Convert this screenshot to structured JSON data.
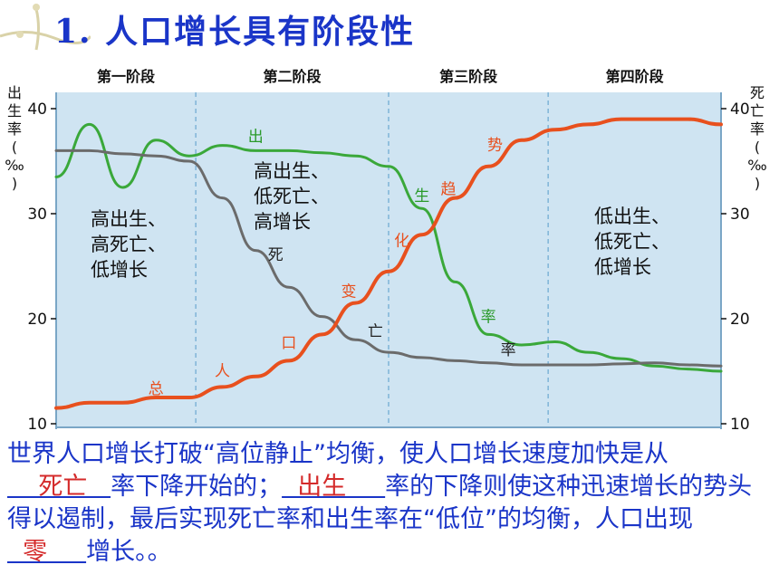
{
  "title": "1.   人口增长具有阶段性",
  "chart_data": {
    "type": "line",
    "x": [
      0,
      5,
      10,
      15,
      20,
      25,
      30,
      35,
      40,
      45,
      50,
      55,
      60,
      65,
      70,
      75,
      80,
      85,
      90,
      95,
      100
    ],
    "stages": [
      "第一阶段",
      "第二阶段",
      "第三阶段",
      "第四阶段"
    ],
    "stage_bounds": [
      0,
      21,
      50,
      74,
      100
    ],
    "ylim": [
      10,
      40
    ],
    "y_ticks": [
      10,
      20,
      30,
      40
    ],
    "ylabel_left": "出生率(‰)",
    "ylabel_right": "死亡率(‰)",
    "series": [
      {
        "key": "birth",
        "color": "#3aa83a",
        "values": [
          33.5,
          38.5,
          32.5,
          37.0,
          35.5,
          36.5,
          36.0,
          36.0,
          35.8,
          35.5,
          34.5,
          30.5,
          23.5,
          18.5,
          17.5,
          17.8,
          16.8,
          16.2,
          15.5,
          15.2,
          15.0
        ],
        "labels": [
          "出",
          "生",
          "率"
        ]
      },
      {
        "key": "death",
        "color": "#6b6b6b",
        "values": [
          36.0,
          36.0,
          35.7,
          35.5,
          35.0,
          31.5,
          26.5,
          23.0,
          20.2,
          18.0,
          16.8,
          16.3,
          16.0,
          15.8,
          15.6,
          15.6,
          15.6,
          15.7,
          15.8,
          15.6,
          15.5
        ],
        "labels": [
          "死",
          "亡",
          "率"
        ]
      },
      {
        "key": "growth",
        "color": "#e8501e",
        "values": [
          11.5,
          12.0,
          12.0,
          12.5,
          12.5,
          13.5,
          14.5,
          16.0,
          18.5,
          21.5,
          24.5,
          28.0,
          31.5,
          34.5,
          37.0,
          38.0,
          38.5,
          39.0,
          39.0,
          39.0,
          38.5
        ],
        "labels": [
          "总",
          "人",
          "口",
          "变",
          "化",
          "趋",
          "势"
        ]
      }
    ],
    "annotations": [
      {
        "text": [
          "高出生、",
          "高死亡、",
          "低增长"
        ]
      },
      {
        "text": [
          "高出生、",
          "低死亡、",
          "高增长"
        ]
      },
      {
        "text": [
          "低出生、",
          "低死亡、",
          "低增长"
        ]
      }
    ]
  },
  "caption": {
    "p1": "世界人口增长打破“高位静止”均衡，使人口增长速度加快是从",
    "b1": "    死亡   ",
    "p2": "率下降开始的；",
    "b2": "  出生     ",
    "p3": "率的下降则使这种迅速增长的势头得以遏制，最后实现死亡率和出生率在“低位”的均衡，人口出现",
    "b3": "  零     ",
    "p4": "增长。。"
  }
}
